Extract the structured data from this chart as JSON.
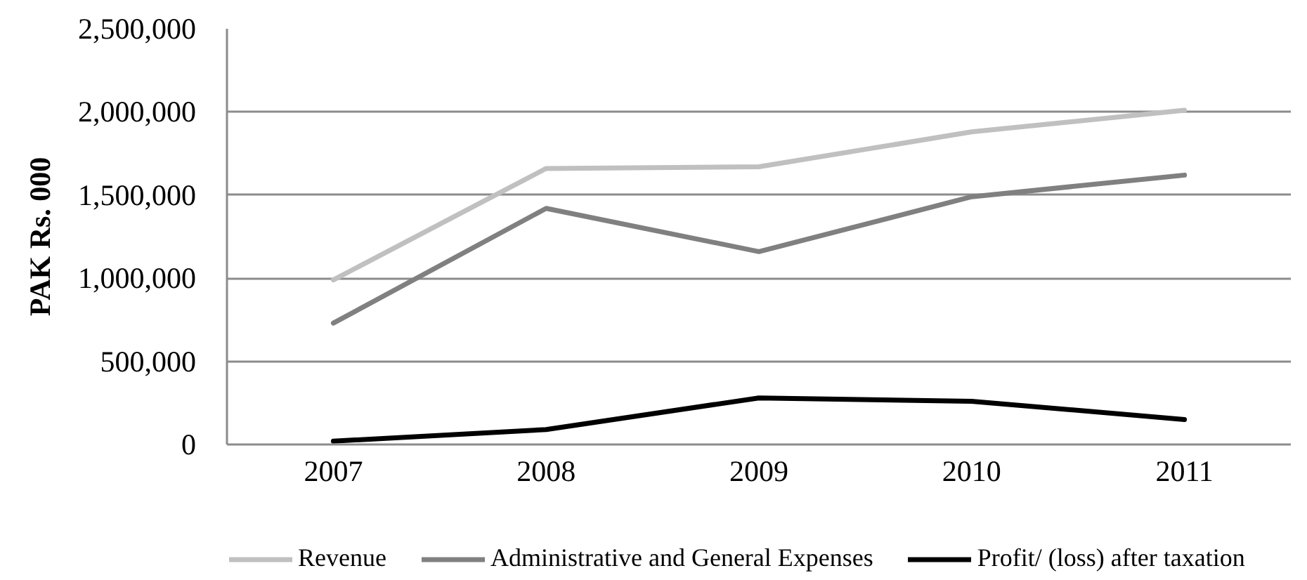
{
  "chart_data": {
    "type": "line",
    "ylabel": "PAK Rs. 000",
    "categories": [
      "2007",
      "2008",
      "2009",
      "2010",
      "2011"
    ],
    "series": [
      {
        "name": "Revenue",
        "color": "#c0c0c0",
        "values": [
          990000,
          1660000,
          1670000,
          1880000,
          2010000
        ]
      },
      {
        "name": "Administrative and General Expenses",
        "color": "#808080",
        "values": [
          730000,
          1420000,
          1160000,
          1490000,
          1620000
        ]
      },
      {
        "name": "Profit/ (loss) after taxation",
        "color": "#000000",
        "values": [
          20000,
          90000,
          280000,
          260000,
          150000
        ]
      }
    ],
    "ylim": [
      0,
      2500000
    ],
    "yticks": [
      0,
      {
        "value": 500000,
        "label": "500,000"
      },
      {
        "value": 1000000,
        "label": "1,000,000"
      },
      {
        "value": 1500000,
        "label": "1,500,000"
      },
      {
        "value": 2000000,
        "label": "2,000,000"
      },
      {
        "value": 2500000,
        "label": "2,500,000"
      }
    ],
    "grid": "y",
    "legend": "bottom"
  }
}
